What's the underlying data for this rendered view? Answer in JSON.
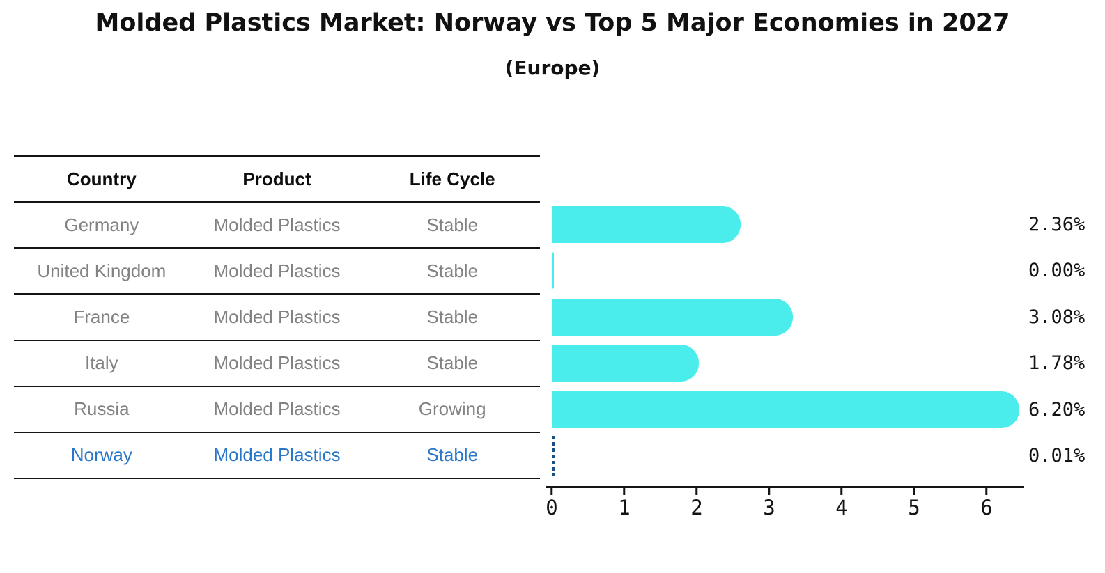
{
  "title": "Molded Plastics Market: Norway vs Top 5 Major Economies in 2027",
  "subtitle": "(Europe)",
  "table": {
    "headers": [
      "Country",
      "Product",
      "Life Cycle"
    ],
    "rows": [
      {
        "country": "Germany",
        "product": "Molded Plastics",
        "life_cycle": "Stable",
        "highlight": false
      },
      {
        "country": "United Kingdom",
        "product": "Molded Plastics",
        "life_cycle": "Stable",
        "highlight": false
      },
      {
        "country": "France",
        "product": "Molded Plastics",
        "life_cycle": "Stable",
        "highlight": false
      },
      {
        "country": "Italy",
        "product": "Molded Plastics",
        "life_cycle": "Stable",
        "highlight": false
      },
      {
        "country": "Russia",
        "product": "Molded Plastics",
        "life_cycle": "Growing",
        "highlight": false
      },
      {
        "country": "Norway",
        "product": "Molded Plastics",
        "life_cycle": "Stable",
        "highlight": true
      }
    ]
  },
  "chart_data": {
    "type": "bar",
    "orientation": "horizontal",
    "title": "Molded Plastics Market: Norway vs Top 5 Major Economies in 2027",
    "subtitle": "(Europe)",
    "categories": [
      "Germany",
      "United Kingdom",
      "France",
      "Italy",
      "Russia",
      "Norway"
    ],
    "values": [
      2.36,
      0.0,
      3.08,
      1.78,
      6.2,
      0.01
    ],
    "value_labels": [
      "2.36%",
      "0.00%",
      "3.08%",
      "1.78%",
      "6.20%",
      "0.01%"
    ],
    "x_ticks": [
      0,
      1,
      2,
      3,
      4,
      5,
      6
    ],
    "xlim": [
      0,
      6.5
    ],
    "grid": false,
    "legend": false,
    "bar_color": "#4AECEC",
    "highlight_text_color": "#2877C8",
    "norway_marker": "vertical-dashed-line",
    "norway_marker_color": "#1A5085"
  }
}
